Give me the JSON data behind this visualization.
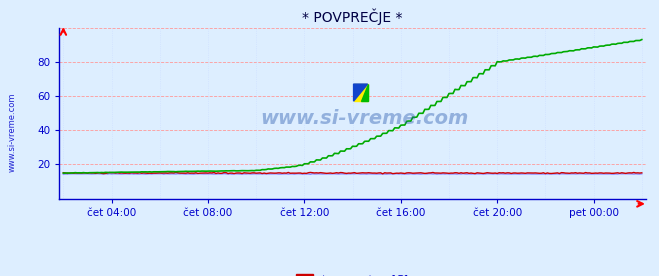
{
  "title": "* POVPREČJE *",
  "bg_color": "#ddeeff",
  "plot_bg_color": "#ddeeff",
  "grid_color_h": "#ff9999",
  "grid_color_v": "#ccddff",
  "text_color": "#0000cc",
  "watermark": "www.si-vreme.com",
  "xlabel_ticks": [
    "čet 04:00",
    "čet 08:00",
    "čet 12:00",
    "čet 16:00",
    "čet 20:00",
    "pet 00:00"
  ],
  "yticks": [
    20,
    40,
    60,
    80
  ],
  "ylim": [
    0,
    100
  ],
  "xlim": [
    0,
    288
  ],
  "series_temperatura_color": "#cc0000",
  "series_pretok_color": "#00aa00",
  "series_visina_color": "#8888ff",
  "tick_label_color": "#0000cc",
  "title_color": "#000044",
  "legend_text_color": "#0000cc",
  "axis_color": "#0000cc",
  "watermark_color": "#2255aa",
  "side_label_color": "#0000cc"
}
